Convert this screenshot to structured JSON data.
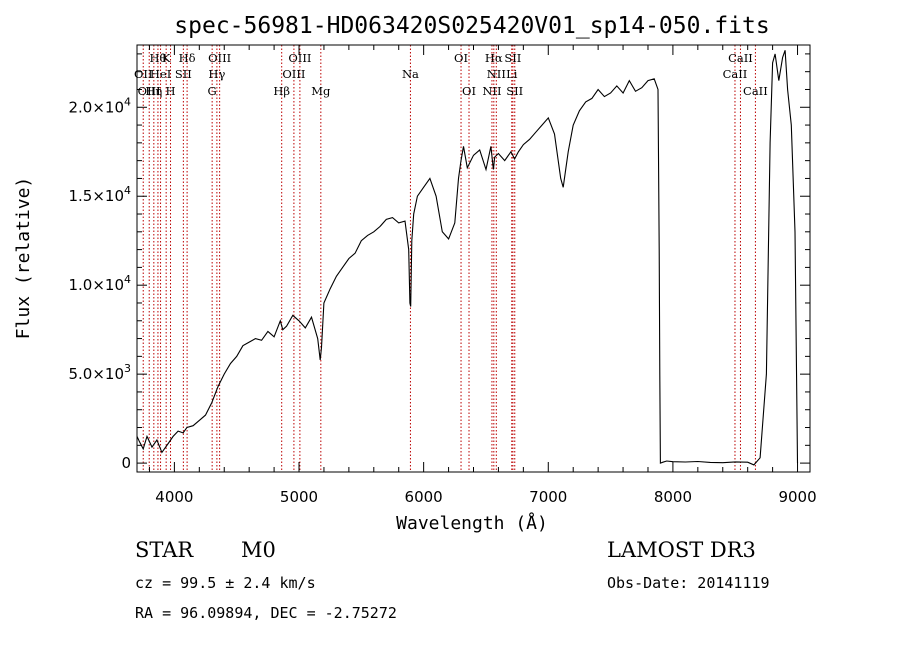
{
  "chart_data": {
    "type": "line",
    "title": "spec-56981-HD063420S025420V01_sp14-050.fits",
    "xlabel": "Wavelength (Å)",
    "ylabel": "Flux (relative)",
    "xlim": [
      3700,
      9100
    ],
    "ylim": [
      -500,
      23500
    ],
    "xticks": [
      {
        "value": 4000,
        "label": "4000"
      },
      {
        "value": 5000,
        "label": "5000"
      },
      {
        "value": 6000,
        "label": "6000"
      },
      {
        "value": 7000,
        "label": "7000"
      },
      {
        "value": 8000,
        "label": "8000"
      },
      {
        "value": 9000,
        "label": "9000"
      }
    ],
    "yticks": [
      {
        "value": 0,
        "base": "0",
        "exp": ""
      },
      {
        "value": 5000,
        "base": "5.0×10",
        "exp": "3"
      },
      {
        "value": 10000,
        "base": "1.0×10",
        "exp": "4"
      },
      {
        "value": 15000,
        "base": "1.5×10",
        "exp": "4"
      },
      {
        "value": 20000,
        "base": "2.0×10",
        "exp": "4"
      }
    ],
    "series": [
      {
        "name": "spectrum",
        "x": [
          3700,
          3720,
          3750,
          3780,
          3820,
          3860,
          3900,
          3950,
          3990,
          4030,
          4070,
          4100,
          4150,
          4200,
          4250,
          4300,
          4350,
          4400,
          4450,
          4500,
          4550,
          4600,
          4650,
          4700,
          4750,
          4800,
          4850,
          4870,
          4900,
          4950,
          5000,
          5050,
          5100,
          5150,
          5170,
          5180,
          5200,
          5250,
          5300,
          5350,
          5400,
          5450,
          5500,
          5550,
          5600,
          5650,
          5700,
          5750,
          5800,
          5850,
          5880,
          5890,
          5896,
          5905,
          5920,
          5950,
          6000,
          6050,
          6100,
          6150,
          6200,
          6250,
          6280,
          6300,
          6320,
          6350,
          6400,
          6450,
          6500,
          6540,
          6560,
          6570,
          6600,
          6650,
          6700,
          6730,
          6760,
          6800,
          6850,
          6900,
          6950,
          7000,
          7050,
          7080,
          7100,
          7120,
          7140,
          7160,
          7200,
          7250,
          7300,
          7350,
          7400,
          7450,
          7500,
          7550,
          7600,
          7650,
          7700,
          7750,
          7800,
          7850,
          7880,
          7890,
          7895,
          7900,
          7920,
          7950,
          8000,
          8100,
          8200,
          8300,
          8400,
          8500,
          8600,
          8650,
          8700,
          8750,
          8780,
          8800,
          8820,
          8850,
          8880,
          8900,
          8920,
          8950,
          8980,
          9000
        ],
        "y": [
          1500,
          1200,
          800,
          1500,
          900,
          1300,
          600,
          1100,
          1500,
          1800,
          1700,
          2000,
          2100,
          2400,
          2700,
          3400,
          4300,
          5000,
          5600,
          6000,
          6600,
          6800,
          7000,
          6900,
          7400,
          7100,
          8000,
          7500,
          7700,
          8300,
          8000,
          7600,
          8200,
          7000,
          5800,
          6500,
          9000,
          9800,
          10500,
          11000,
          11500,
          11800,
          12500,
          12800,
          13000,
          13300,
          13700,
          13800,
          13500,
          13600,
          12000,
          9000,
          8800,
          12500,
          14000,
          15000,
          15500,
          16000,
          15000,
          13000,
          12600,
          13500,
          16000,
          17000,
          17800,
          16600,
          17300,
          17600,
          16500,
          17800,
          16500,
          17200,
          17400,
          17000,
          17500,
          17100,
          17500,
          17900,
          18200,
          18600,
          19000,
          19400,
          18500,
          17000,
          16000,
          15500,
          16500,
          17500,
          19000,
          19800,
          20300,
          20500,
          21000,
          20600,
          20800,
          21200,
          20800,
          21500,
          20900,
          21100,
          21500,
          21600,
          21000,
          12000,
          5000,
          0,
          50,
          120,
          80,
          60,
          90,
          40,
          20,
          70,
          50,
          -100,
          300,
          5000,
          18000,
          22500,
          23000,
          21500,
          22800,
          23200,
          21000,
          19000,
          13000,
          0
        ]
      }
    ],
    "line_markers": [
      {
        "x": 3750,
        "label": "OII",
        "row": 2
      },
      {
        "x": 3798,
        "label": "OIII",
        "row": 3
      },
      {
        "x": 3835,
        "label": "Hη",
        "row": 3
      },
      {
        "x": 3868,
        "label": "Hθ",
        "row": 1
      },
      {
        "x": 3889,
        "label": "HeI",
        "row": 2
      },
      {
        "x": 3934,
        "label": "K",
        "row": 1
      },
      {
        "x": 3969,
        "label": "H",
        "row": 3
      },
      {
        "x": 4072,
        "label": "SII",
        "row": 2
      },
      {
        "x": 4102,
        "label": "Hδ",
        "row": 1
      },
      {
        "x": 4303,
        "label": "G",
        "row": 3
      },
      {
        "x": 4341,
        "label": "Hγ",
        "row": 2
      },
      {
        "x": 4363,
        "label": "OIII",
        "row": 1
      },
      {
        "x": 4861,
        "label": "Hβ",
        "row": 3
      },
      {
        "x": 4959,
        "label": "OIII",
        "row": 2
      },
      {
        "x": 5007,
        "label": "OIII",
        "row": 1
      },
      {
        "x": 5175,
        "label": "Mg",
        "row": 3
      },
      {
        "x": 5894,
        "label": "Na",
        "row": 2
      },
      {
        "x": 6300,
        "label": "OI",
        "row": 1
      },
      {
        "x": 6364,
        "label": "OI",
        "row": 3
      },
      {
        "x": 6548,
        "label": "NII",
        "row": 3
      },
      {
        "x": 6563,
        "label": "Hα",
        "row": 1
      },
      {
        "x": 6583,
        "label": "NII",
        "row": 2
      },
      {
        "x": 6707,
        "label": "Li",
        "row": 2
      },
      {
        "x": 6716,
        "label": "SII",
        "row": 1
      },
      {
        "x": 6731,
        "label": "SII",
        "row": 3
      },
      {
        "x": 8498,
        "label": "CaII",
        "row": 2
      },
      {
        "x": 8542,
        "label": "CaII",
        "row": 1
      },
      {
        "x": 8662,
        "label": "CaII",
        "row": 3
      }
    ]
  },
  "info": {
    "class_label": "STAR",
    "subclass": "M0",
    "survey": "LAMOST DR3",
    "redshift": "cz = 99.5 ± 2.4 km/s",
    "obs_date": "Obs-Date: 20141119",
    "coords": "RA =  96.09894, DEC =  -2.75272"
  },
  "colors": {
    "line_marker": "#bb0000",
    "spectrum": "#000000"
  }
}
